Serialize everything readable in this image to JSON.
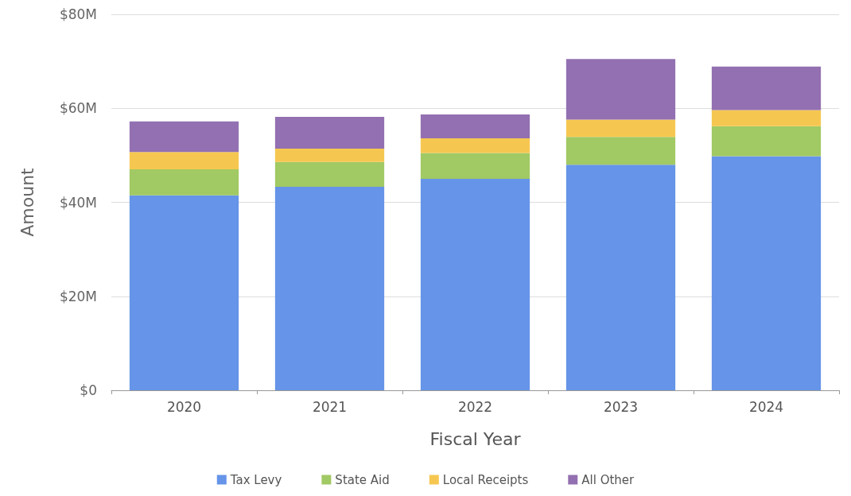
{
  "chart_data": {
    "type": "bar",
    "stacked": true,
    "xlabel": "Fiscal Year",
    "ylabel": "Amount",
    "categories": [
      "2020",
      "2021",
      "2022",
      "2023",
      "2024"
    ],
    "series": [
      {
        "name": "Tax Levy",
        "color": "#6594e8",
        "values": [
          41.5,
          43.3,
          45.0,
          48.0,
          49.8
        ]
      },
      {
        "name": "State Aid",
        "color": "#a1c964",
        "values": [
          5.5,
          5.3,
          5.5,
          5.9,
          6.4
        ]
      },
      {
        "name": "Local Receipts",
        "color": "#f6c750",
        "values": [
          3.7,
          2.8,
          3.1,
          3.7,
          3.4
        ]
      },
      {
        "name": "All Other",
        "color": "#9370b1",
        "values": [
          6.5,
          6.8,
          5.1,
          12.9,
          9.3
        ]
      }
    ],
    "ylim": [
      0,
      80
    ],
    "yticks": [
      {
        "value": 0,
        "label": "$0"
      },
      {
        "value": 20,
        "label": "$20M"
      },
      {
        "value": 40,
        "label": "$40M"
      },
      {
        "value": 60,
        "label": "$60M"
      },
      {
        "value": 80,
        "label": "$80M"
      }
    ],
    "grid": "y",
    "legend": "bottom"
  }
}
